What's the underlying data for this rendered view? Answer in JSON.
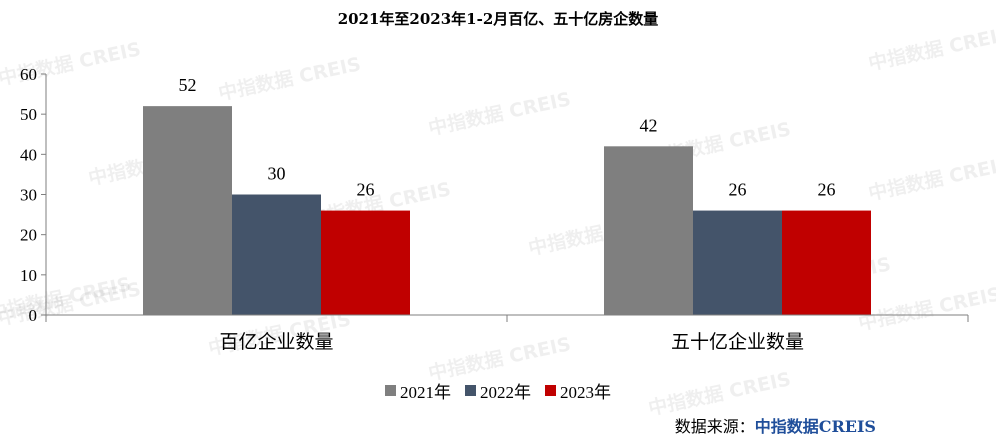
{
  "chart_data": {
    "type": "bar",
    "title": "2021年至2023年1-2月百亿、五十亿房企数量",
    "categories": [
      "百亿企业数量",
      "五十亿企业数量"
    ],
    "series": [
      {
        "name": "2021年",
        "values": [
          52,
          42
        ],
        "color": "#7f7f7f"
      },
      {
        "name": "2022年",
        "values": [
          30,
          26
        ],
        "color": "#44546a"
      },
      {
        "name": "2023年",
        "values": [
          26,
          26
        ],
        "color": "#c00000"
      }
    ],
    "ylim": [
      0,
      60
    ],
    "yticks": [
      0,
      10,
      20,
      30,
      40,
      50,
      60
    ],
    "xlabel": "",
    "ylabel": "",
    "grid": false,
    "legend": "bottom"
  },
  "source": {
    "label": "数据来源：",
    "brand": "中指数据CREIS"
  },
  "watermark": "中指数据 CREIS"
}
